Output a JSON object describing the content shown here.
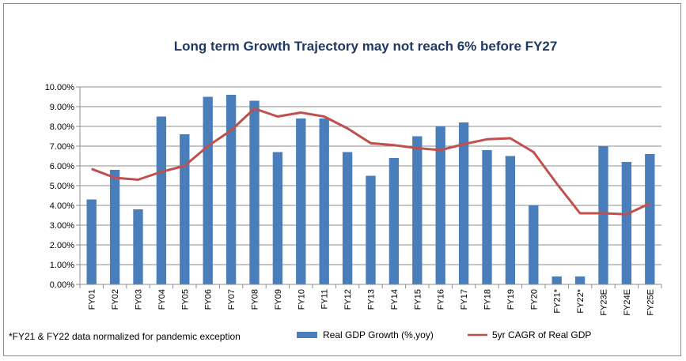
{
  "chart_data": {
    "type": "bar",
    "title": "Long term Growth Trajectory may not reach 6% before FY27",
    "categories": [
      "FY01",
      "FY02",
      "FY03",
      "FY04",
      "FY05",
      "FY06",
      "FY07",
      "FY08",
      "FY09",
      "FY10",
      "FY11",
      "FY12",
      "FY13",
      "FY14",
      "FY15",
      "FY16",
      "FY17",
      "FY18",
      "FY19",
      "FY20",
      "FY21*",
      "FY22*",
      "FY23E",
      "FY24E",
      "FY25E"
    ],
    "series": [
      {
        "name": "Real GDP Growth (%,yoy)",
        "type": "bar",
        "color": "#4a7ebb",
        "values": [
          4.3,
          5.8,
          3.8,
          8.5,
          7.6,
          9.5,
          9.6,
          9.3,
          6.7,
          8.4,
          8.4,
          6.7,
          5.5,
          6.4,
          7.5,
          8.0,
          8.2,
          6.8,
          6.5,
          4.0,
          0.4,
          0.4,
          7.0,
          6.2,
          6.6
        ]
      },
      {
        "name": "5yr CAGR of Real GDP",
        "type": "line",
        "color": "#c0504d",
        "values": [
          5.85,
          5.4,
          5.3,
          5.7,
          6.0,
          7.0,
          7.8,
          8.9,
          8.5,
          8.7,
          8.5,
          7.9,
          7.15,
          7.05,
          6.9,
          6.8,
          7.1,
          7.35,
          7.4,
          6.7,
          5.1,
          3.6,
          3.6,
          3.55,
          4.1
        ]
      }
    ],
    "ylim": [
      0,
      10
    ],
    "yticks": [
      "0.00%",
      "1.00%",
      "2.00%",
      "3.00%",
      "4.00%",
      "5.00%",
      "6.00%",
      "7.00%",
      "8.00%",
      "9.00%",
      "10.00%"
    ],
    "grid": true,
    "legend_position": "bottom",
    "note": "*FY21 & FY22 data normalized for pandemic exception"
  }
}
